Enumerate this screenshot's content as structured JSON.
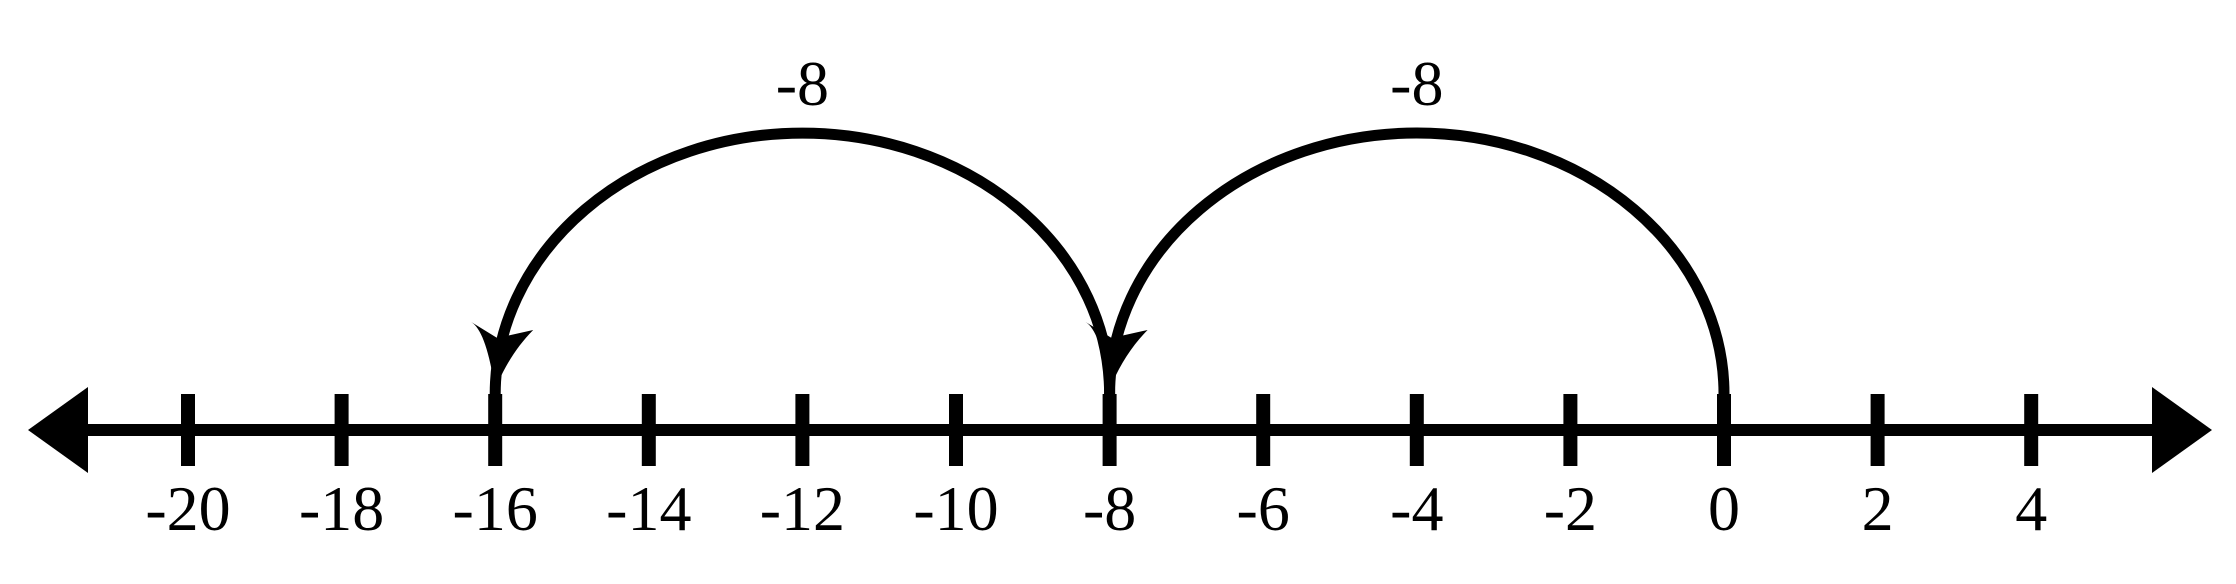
{
  "number_line": {
    "min": -20,
    "max": 4,
    "tick_step": 2,
    "tick_labels": [
      "-20",
      "-18",
      "-16",
      "-14",
      "-12",
      "-10",
      "-8",
      "-6",
      "-4",
      "-2",
      "0",
      "2",
      "4"
    ],
    "arrows_both_ends": true,
    "color": "#000000"
  },
  "jumps": [
    {
      "from": 0,
      "to": -8,
      "label": "-8"
    },
    {
      "from": -8,
      "to": -16,
      "label": "-8"
    }
  ]
}
